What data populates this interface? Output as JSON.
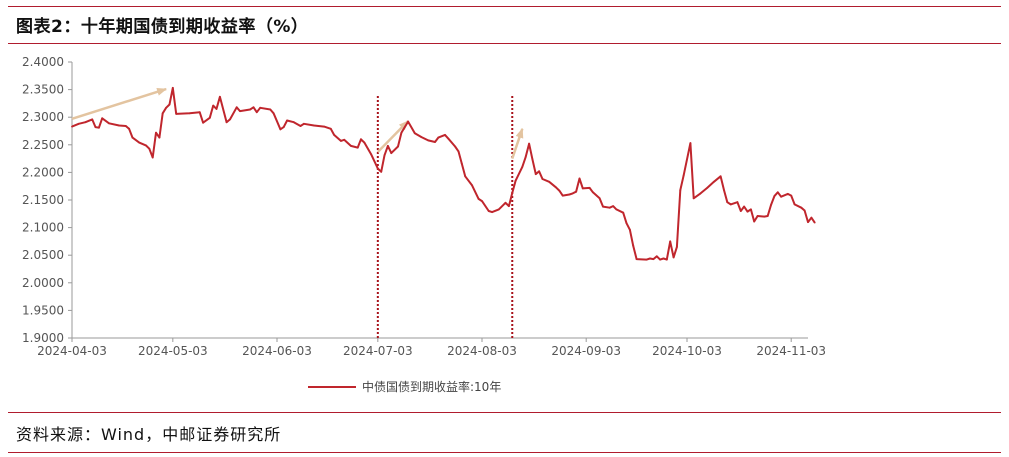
{
  "header": {
    "title": "图表2：十年期国债到期收益率（%）"
  },
  "footer": {
    "source": "资料来源：Wind，中邮证券研究所"
  },
  "chart_data": {
    "type": "line",
    "title": "图表2：十年期国债到期收益率（%）",
    "xlabel": "",
    "ylabel": "",
    "ylim": [
      1.9,
      2.4
    ],
    "y_ticks": [
      "2.4000",
      "2.3500",
      "2.3000",
      "2.2500",
      "2.2000",
      "2.1500",
      "2.1000",
      "2.0500",
      "2.0000",
      "1.9500",
      "1.9000"
    ],
    "x_ticks": [
      "2024-04-03",
      "2024-05-03",
      "2024-06-03",
      "2024-07-03",
      "2024-08-03",
      "2024-09-03",
      "2024-10-03",
      "2024-11-03"
    ],
    "x_range": [
      "2024-04-03",
      "2024-11-08"
    ],
    "grid": false,
    "legend_position": "bottom",
    "series": [
      {
        "name": "中债国债到期收益率:10年",
        "color": "#c0262d",
        "points": [
          [
            "2024-04-03",
            2.283
          ],
          [
            "2024-04-05",
            2.288
          ],
          [
            "2024-04-07",
            2.291
          ],
          [
            "2024-04-09",
            2.296
          ],
          [
            "2024-04-10",
            2.282
          ],
          [
            "2024-04-11",
            2.281
          ],
          [
            "2024-04-12",
            2.298
          ],
          [
            "2024-04-14",
            2.289
          ],
          [
            "2024-04-17",
            2.285
          ],
          [
            "2024-04-19",
            2.284
          ],
          [
            "2024-04-20",
            2.279
          ],
          [
            "2024-04-21",
            2.263
          ],
          [
            "2024-04-23",
            2.254
          ],
          [
            "2024-04-25",
            2.249
          ],
          [
            "2024-04-26",
            2.243
          ],
          [
            "2024-04-27",
            2.227
          ],
          [
            "2024-04-28",
            2.272
          ],
          [
            "2024-04-29",
            2.263
          ],
          [
            "2024-04-30",
            2.307
          ],
          [
            "2024-05-01",
            2.317
          ],
          [
            "2024-05-02",
            2.323
          ],
          [
            "2024-05-03",
            2.353
          ],
          [
            "2024-05-04",
            2.306
          ],
          [
            "2024-05-08",
            2.307
          ],
          [
            "2024-05-11",
            2.309
          ],
          [
            "2024-05-12",
            2.29
          ],
          [
            "2024-05-14",
            2.299
          ],
          [
            "2024-05-15",
            2.321
          ],
          [
            "2024-05-16",
            2.315
          ],
          [
            "2024-05-17",
            2.337
          ],
          [
            "2024-05-19",
            2.291
          ],
          [
            "2024-05-20",
            2.296
          ],
          [
            "2024-05-22",
            2.318
          ],
          [
            "2024-05-23",
            2.311
          ],
          [
            "2024-05-26",
            2.314
          ],
          [
            "2024-05-27",
            2.318
          ],
          [
            "2024-05-28",
            2.309
          ],
          [
            "2024-05-29",
            2.317
          ],
          [
            "2024-06-01",
            2.314
          ],
          [
            "2024-06-02",
            2.307
          ],
          [
            "2024-06-04",
            2.278
          ],
          [
            "2024-06-05",
            2.282
          ],
          [
            "2024-06-06",
            2.294
          ],
          [
            "2024-06-08",
            2.291
          ],
          [
            "2024-06-10",
            2.284
          ],
          [
            "2024-06-11",
            2.288
          ],
          [
            "2024-06-14",
            2.285
          ],
          [
            "2024-06-17",
            2.283
          ],
          [
            "2024-06-19",
            2.279
          ],
          [
            "2024-06-20",
            2.268
          ],
          [
            "2024-06-22",
            2.257
          ],
          [
            "2024-06-23",
            2.259
          ],
          [
            "2024-06-25",
            2.248
          ],
          [
            "2024-06-27",
            2.245
          ],
          [
            "2024-06-28",
            2.26
          ],
          [
            "2024-06-29",
            2.254
          ],
          [
            "2024-07-01",
            2.233
          ],
          [
            "2024-07-03",
            2.207
          ],
          [
            "2024-07-04",
            2.201
          ],
          [
            "2024-07-05",
            2.231
          ],
          [
            "2024-07-06",
            2.248
          ],
          [
            "2024-07-07",
            2.235
          ],
          [
            "2024-07-09",
            2.247
          ],
          [
            "2024-07-10",
            2.272
          ],
          [
            "2024-07-12",
            2.292
          ],
          [
            "2024-07-14",
            2.271
          ],
          [
            "2024-07-16",
            2.264
          ],
          [
            "2024-07-18",
            2.258
          ],
          [
            "2024-07-20",
            2.255
          ],
          [
            "2024-07-21",
            2.263
          ],
          [
            "2024-07-23",
            2.268
          ],
          [
            "2024-07-24",
            2.261
          ],
          [
            "2024-07-26",
            2.247
          ],
          [
            "2024-07-27",
            2.238
          ],
          [
            "2024-07-28",
            2.216
          ],
          [
            "2024-07-29",
            2.193
          ],
          [
            "2024-07-31",
            2.177
          ],
          [
            "2024-08-02",
            2.152
          ],
          [
            "2024-08-03",
            2.148
          ],
          [
            "2024-08-05",
            2.13
          ],
          [
            "2024-08-06",
            2.128
          ],
          [
            "2024-08-08",
            2.133
          ],
          [
            "2024-08-10",
            2.145
          ],
          [
            "2024-08-11",
            2.139
          ],
          [
            "2024-08-12",
            2.163
          ],
          [
            "2024-08-13",
            2.185
          ],
          [
            "2024-08-15",
            2.21
          ],
          [
            "2024-08-16",
            2.228
          ],
          [
            "2024-08-17",
            2.252
          ],
          [
            "2024-08-18",
            2.224
          ],
          [
            "2024-08-19",
            2.197
          ],
          [
            "2024-08-20",
            2.202
          ],
          [
            "2024-08-21",
            2.188
          ],
          [
            "2024-08-23",
            2.183
          ],
          [
            "2024-08-25",
            2.173
          ],
          [
            "2024-08-26",
            2.167
          ],
          [
            "2024-08-27",
            2.158
          ],
          [
            "2024-08-29",
            2.16
          ],
          [
            "2024-08-30",
            2.162
          ],
          [
            "2024-08-31",
            2.165
          ],
          [
            "2024-09-01",
            2.189
          ],
          [
            "2024-09-02",
            2.171
          ],
          [
            "2024-09-04",
            2.172
          ],
          [
            "2024-09-05",
            2.164
          ],
          [
            "2024-09-07",
            2.153
          ],
          [
            "2024-09-08",
            2.138
          ],
          [
            "2024-09-10",
            2.136
          ],
          [
            "2024-09-11",
            2.139
          ],
          [
            "2024-09-12",
            2.133
          ],
          [
            "2024-09-14",
            2.127
          ],
          [
            "2024-09-15",
            2.108
          ],
          [
            "2024-09-16",
            2.096
          ],
          [
            "2024-09-17",
            2.067
          ],
          [
            "2024-09-18",
            2.043
          ],
          [
            "2024-09-21",
            2.042
          ],
          [
            "2024-09-22",
            2.044
          ],
          [
            "2024-09-23",
            2.043
          ],
          [
            "2024-09-24",
            2.048
          ],
          [
            "2024-09-25",
            2.042
          ],
          [
            "2024-09-26",
            2.044
          ],
          [
            "2024-09-27",
            2.042
          ],
          [
            "2024-09-28",
            2.075
          ],
          [
            "2024-09-29",
            2.046
          ],
          [
            "2024-09-30",
            2.065
          ],
          [
            "2024-10-01",
            2.168
          ],
          [
            "2024-10-02",
            2.195
          ],
          [
            "2024-10-04",
            2.253
          ],
          [
            "2024-10-05",
            2.153
          ],
          [
            "2024-10-07",
            2.162
          ],
          [
            "2024-10-09",
            2.172
          ],
          [
            "2024-10-11",
            2.183
          ],
          [
            "2024-10-13",
            2.193
          ],
          [
            "2024-10-14",
            2.168
          ],
          [
            "2024-10-15",
            2.146
          ],
          [
            "2024-10-16",
            2.142
          ],
          [
            "2024-10-18",
            2.146
          ],
          [
            "2024-10-19",
            2.13
          ],
          [
            "2024-10-20",
            2.138
          ],
          [
            "2024-10-21",
            2.129
          ],
          [
            "2024-10-22",
            2.133
          ],
          [
            "2024-10-23",
            2.111
          ],
          [
            "2024-10-24",
            2.121
          ],
          [
            "2024-10-26",
            2.12
          ],
          [
            "2024-10-27",
            2.121
          ],
          [
            "2024-10-28",
            2.141
          ],
          [
            "2024-10-29",
            2.157
          ],
          [
            "2024-10-30",
            2.164
          ],
          [
            "2024-10-31",
            2.156
          ],
          [
            "2024-11-02",
            2.161
          ],
          [
            "2024-11-03",
            2.158
          ],
          [
            "2024-11-04",
            2.142
          ],
          [
            "2024-11-06",
            2.136
          ],
          [
            "2024-11-07",
            2.131
          ],
          [
            "2024-11-08",
            2.11
          ],
          [
            "2024-11-09",
            2.118
          ],
          [
            "2024-11-10",
            2.109
          ]
        ]
      }
    ],
    "annotations": {
      "vlines": [
        "2024-07-03",
        "2024-08-12"
      ],
      "vline_color": "#a8121a",
      "arrow_color": "#e3c4a0",
      "arrows": [
        {
          "from": [
            "2024-04-03",
            2.297
          ],
          "to": [
            "2024-05-01",
            2.351
          ]
        },
        {
          "from": [
            "2024-07-03",
            2.237
          ],
          "to": [
            "2024-07-12",
            2.293
          ]
        },
        {
          "from": [
            "2024-08-12",
            2.225
          ],
          "to": [
            "2024-08-15",
            2.279
          ]
        }
      ]
    }
  }
}
